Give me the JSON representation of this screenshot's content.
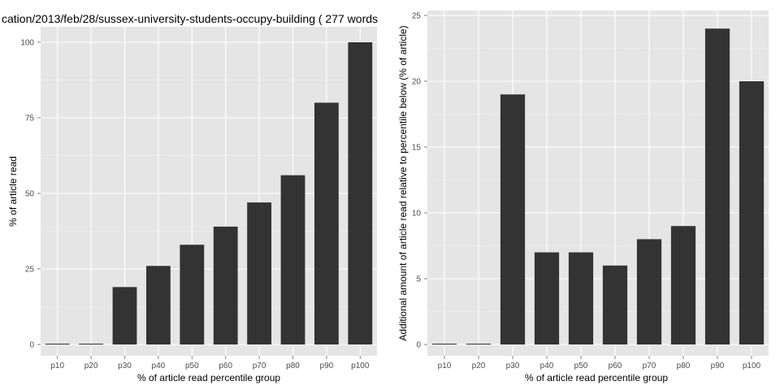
{
  "chart_data": [
    {
      "type": "bar",
      "title": "cation/2013/feb/28/sussex-university-students-occupy-building ( 277 words",
      "xlabel": "% of article read percentile group",
      "ylabel": "% of article read",
      "categories": [
        "p10",
        "p20",
        "p30",
        "p40",
        "p50",
        "p60",
        "p70",
        "p80",
        "p90",
        "p100"
      ],
      "values": [
        0,
        0,
        19,
        26,
        33,
        39,
        47,
        56,
        80,
        100
      ],
      "ylim": [
        0,
        105
      ],
      "yticks": [
        "0",
        "25",
        "50",
        "75",
        "100"
      ],
      "grid": true,
      "bar_color": "#333333",
      "panel_color": "#e5e5e5",
      "grid_color": "#ffffff"
    },
    {
      "type": "bar",
      "title": "",
      "xlabel": "% of article read percentile group",
      "ylabel": "Additional amount of article read relative to percentile below (% of article)",
      "categories": [
        "p10",
        "p20",
        "p30",
        "p40",
        "p50",
        "p60",
        "p70",
        "p80",
        "p90",
        "p100"
      ],
      "values": [
        0,
        0,
        19,
        7,
        7,
        6,
        8,
        9,
        24,
        20
      ],
      "ylim": [
        0,
        25.2
      ],
      "yticks": [
        "0",
        "5",
        "10",
        "15",
        "20",
        "25"
      ],
      "grid": true,
      "bar_color": "#333333",
      "panel_color": "#e5e5e5",
      "grid_color": "#ffffff"
    }
  ]
}
